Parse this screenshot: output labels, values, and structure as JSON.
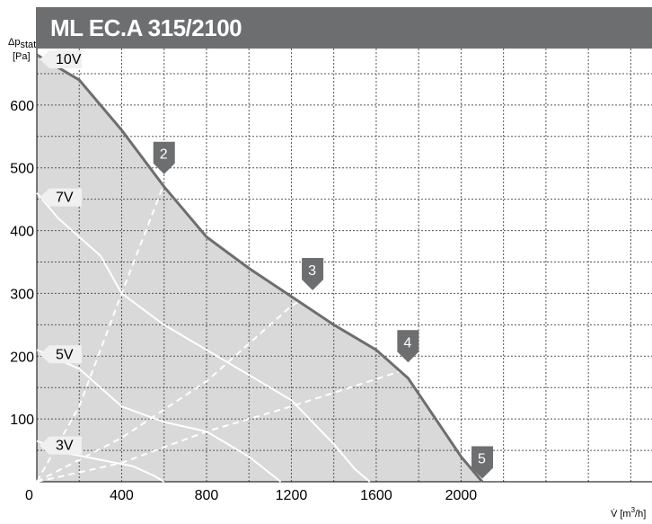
{
  "chart_data": {
    "type": "line",
    "title": "ML EC.A 315/2100",
    "ylabel_symbol": "Δp",
    "ylabel_sub": "stat",
    "yunit": "[Pa]",
    "xlabel_symbol": "V̇",
    "xunit_open": "[m",
    "xunit_exp": "3",
    "xunit_close": "/h]",
    "xlim": [
      0,
      2900
    ],
    "ylim": [
      0,
      690
    ],
    "x_ticks": [
      0,
      400,
      800,
      1200,
      1600,
      2000
    ],
    "y_ticks": [
      100,
      200,
      300,
      400,
      500,
      600
    ],
    "grid": true,
    "colors": {
      "fill": "#d9d9da",
      "curve": "#6d6e70",
      "grid": "#555555",
      "title_bg": "#6d6e70",
      "marker": "#6d6e70"
    },
    "series": [
      {
        "name": "10V",
        "points": [
          [
            0,
            680
          ],
          [
            200,
            640
          ],
          [
            400,
            560
          ],
          [
            600,
            470
          ],
          [
            800,
            390
          ],
          [
            1000,
            340
          ],
          [
            1200,
            295
          ],
          [
            1400,
            250
          ],
          [
            1600,
            210
          ],
          [
            1750,
            165
          ],
          [
            1900,
            90
          ],
          [
            2000,
            40
          ],
          [
            2100,
            0
          ]
        ]
      },
      {
        "name": "7V",
        "points": [
          [
            0,
            460
          ],
          [
            100,
            420
          ],
          [
            200,
            390
          ],
          [
            300,
            360
          ],
          [
            400,
            300
          ],
          [
            600,
            250
          ],
          [
            800,
            210
          ],
          [
            1000,
            170
          ],
          [
            1200,
            130
          ],
          [
            1400,
            60
          ],
          [
            1500,
            20
          ],
          [
            1570,
            0
          ]
        ]
      },
      {
        "name": "5V",
        "points": [
          [
            0,
            210
          ],
          [
            200,
            180
          ],
          [
            300,
            150
          ],
          [
            400,
            120
          ],
          [
            600,
            95
          ],
          [
            800,
            80
          ],
          [
            1000,
            40
          ],
          [
            1150,
            0
          ]
        ]
      },
      {
        "name": "3V",
        "points": [
          [
            0,
            65
          ],
          [
            150,
            45
          ],
          [
            300,
            35
          ],
          [
            450,
            25
          ],
          [
            550,
            10
          ],
          [
            600,
            0
          ]
        ]
      }
    ],
    "system_lines": [
      {
        "name": "2",
        "points": [
          [
            0,
            0
          ],
          [
            200,
            120
          ],
          [
            400,
            300
          ],
          [
            600,
            475
          ]
        ]
      },
      {
        "name": "3",
        "points": [
          [
            0,
            0
          ],
          [
            400,
            70
          ],
          [
            800,
            160
          ],
          [
            1200,
            280
          ],
          [
            1300,
            300
          ]
        ]
      },
      {
        "name": "4",
        "points": [
          [
            0,
            0
          ],
          [
            400,
            30
          ],
          [
            800,
            80
          ],
          [
            1200,
            120
          ],
          [
            1750,
            180
          ]
        ]
      }
    ],
    "curve_labels": [
      {
        "text": "10V",
        "y": 680
      },
      {
        "text": "7V",
        "y": 460
      },
      {
        "text": "5V",
        "y": 210
      },
      {
        "text": "3V",
        "y": 65
      }
    ],
    "markers": [
      {
        "text": "2",
        "x": 600,
        "y": 490
      },
      {
        "text": "3",
        "x": 1300,
        "y": 305
      },
      {
        "text": "4",
        "x": 1750,
        "y": 190
      },
      {
        "text": "5",
        "x": 2100,
        "y": 5
      }
    ]
  }
}
